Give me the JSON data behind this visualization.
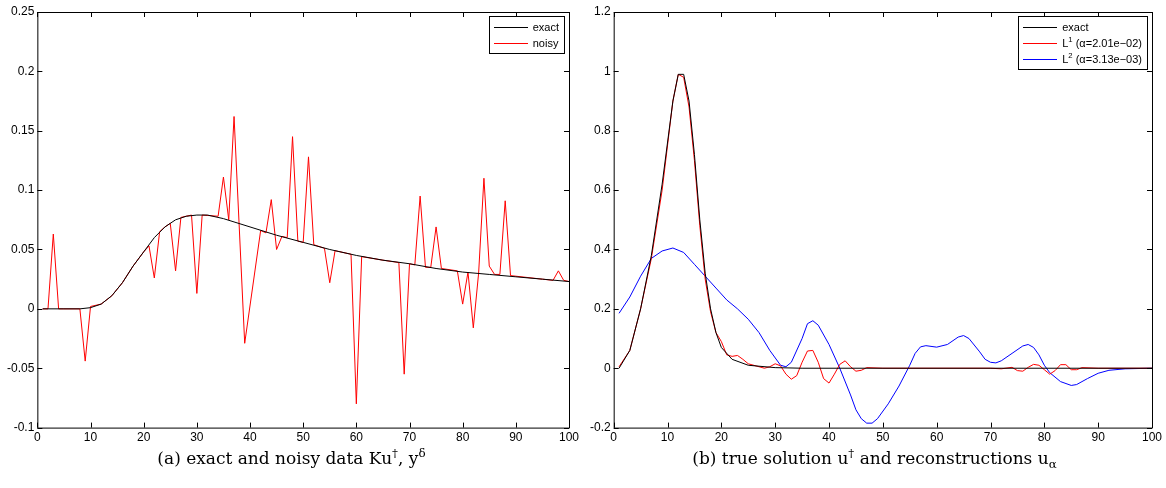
{
  "chart_data": [
    {
      "type": "line",
      "xlabel": "(a) exact and noisy data Ku$^{†}$, y$^{δ}$",
      "xlim": [
        0,
        100
      ],
      "xticks": [
        0,
        10,
        20,
        30,
        40,
        50,
        60,
        70,
        80,
        90,
        100
      ],
      "ylim": [
        -0.1,
        0.25
      ],
      "yticks": [
        -0.1,
        -0.05,
        0,
        0.05,
        0.1,
        0.15,
        0.2,
        0.25
      ],
      "legend": "top right",
      "series": [
        {
          "name": "exact",
          "color": "#000000",
          "x": [
            1,
            5,
            8,
            10,
            12,
            14,
            16,
            18,
            20,
            22,
            24,
            26,
            28,
            30,
            32,
            35,
            40,
            45,
            50,
            55,
            60,
            65,
            70,
            75,
            80,
            85,
            90,
            95,
            100
          ],
          "values": [
            0,
            0,
            0,
            0.001,
            0.004,
            0.011,
            0.022,
            0.036,
            0.048,
            0.06,
            0.069,
            0.075,
            0.078,
            0.079,
            0.079,
            0.076,
            0.069,
            0.062,
            0.056,
            0.05,
            0.045,
            0.041,
            0.038,
            0.034,
            0.031,
            0.029,
            0.027,
            0.025,
            0.023
          ]
        },
        {
          "name": "noisy",
          "color": "#ff0000",
          "x": [
            1,
            2,
            3,
            4,
            8,
            9,
            10,
            12,
            14,
            16,
            18,
            20,
            21,
            22,
            23,
            24,
            25,
            26,
            27,
            28,
            29,
            30,
            31,
            34,
            35,
            36,
            37,
            39,
            42,
            43,
            44,
            45,
            46,
            47,
            48,
            49,
            50,
            51,
            52,
            54,
            55,
            56,
            59,
            60,
            61,
            65,
            68,
            69,
            70,
            71,
            72,
            73,
            74,
            75,
            76,
            79,
            80,
            81,
            82,
            83,
            84,
            85,
            86,
            87,
            88,
            89,
            95,
            97,
            98,
            99,
            100
          ],
          "values": [
            0,
            0,
            0.063,
            0,
            0,
            -0.044,
            0.002,
            0.004,
            0.011,
            0.022,
            0.036,
            0.048,
            0.053,
            0.026,
            0.065,
            0.069,
            0.072,
            0.032,
            0.077,
            0.078,
            0.079,
            0.013,
            0.079,
            0.078,
            0.111,
            0.075,
            0.162,
            -0.029,
            0.066,
            0.064,
            0.092,
            0.05,
            0.061,
            0.06,
            0.145,
            0.057,
            0.056,
            0.128,
            0.054,
            0.051,
            0.022,
            0.049,
            0.046,
            -0.08,
            0.044,
            0.041,
            0.039,
            -0.055,
            0.038,
            0.037,
            0.095,
            0.035,
            0.035,
            0.069,
            0.034,
            0.032,
            0.004,
            0.031,
            -0.016,
            0.03,
            0.11,
            0.036,
            0.029,
            0.029,
            0.091,
            0.028,
            0.025,
            0.024,
            0.032,
            0.024,
            0.023
          ]
        }
      ]
    },
    {
      "type": "line",
      "xlabel": "(b) true solution u$^{†}$ and reconstructions u$_{α}$",
      "xlim": [
        0,
        100
      ],
      "xticks": [
        0,
        10,
        20,
        30,
        40,
        50,
        60,
        70,
        80,
        90,
        100
      ],
      "ylim": [
        -0.2,
        1.2
      ],
      "yticks": [
        -0.2,
        0,
        0.2,
        0.4,
        0.6,
        0.8,
        1,
        1.2
      ],
      "legend": "top right",
      "series": [
        {
          "name": "exact",
          "color": "#000000",
          "x": [
            1,
            3,
            5,
            7,
            9,
            11,
            12,
            13,
            14,
            15,
            16,
            17,
            18,
            19,
            20,
            22,
            25,
            30,
            35,
            100
          ],
          "values": [
            0,
            0.06,
            0.2,
            0.38,
            0.62,
            0.9,
            0.99,
            0.99,
            0.9,
            0.72,
            0.5,
            0.32,
            0.2,
            0.12,
            0.07,
            0.03,
            0.01,
            0.002,
            0,
            0
          ]
        },
        {
          "name": "L$^{1}$ (α=2.01e−02)",
          "color": "#ff0000",
          "x": [
            1,
            3,
            5,
            7,
            9,
            11,
            12,
            13,
            14,
            15,
            16,
            17,
            18,
            19,
            20,
            21,
            22,
            23,
            24,
            25,
            27,
            28,
            29,
            30,
            31,
            32,
            33,
            34,
            35,
            36,
            37,
            38,
            39,
            40,
            41,
            42,
            43,
            44,
            45,
            46,
            47,
            50,
            70,
            72,
            74,
            75,
            76,
            77,
            78,
            79,
            80,
            81,
            82,
            83,
            84,
            85,
            86,
            87,
            90,
            100
          ],
          "values": [
            0.005,
            0.06,
            0.2,
            0.37,
            0.6,
            0.9,
            0.99,
            0.98,
            0.88,
            0.7,
            0.48,
            0.3,
            0.19,
            0.12,
            0.09,
            0.045,
            0.04,
            0.043,
            0.03,
            0.015,
            0.005,
            0,
            0.005,
            0.015,
            0.008,
            -0.02,
            -0.037,
            -0.025,
            0.02,
            0.058,
            0.06,
            0.02,
            -0.035,
            -0.05,
            -0.02,
            0.013,
            0.025,
            0.005,
            -0.01,
            -0.007,
            0.002,
            0,
            0,
            -0.002,
            0.003,
            -0.008,
            -0.01,
            0.003,
            0.013,
            0.01,
            -0.005,
            -0.02,
            -0.008,
            0.012,
            0.012,
            -0.005,
            -0.005,
            0.002,
            0,
            0
          ]
        },
        {
          "name": "L$^{2}$ (α=3.13e−03)",
          "color": "#0000ff",
          "x": [
            1,
            3,
            5,
            7,
            9,
            11,
            13,
            15,
            17,
            19,
            21,
            23,
            25,
            27,
            29,
            31,
            32,
            33,
            35,
            36,
            37,
            38,
            40,
            42,
            44,
            45,
            46,
            47,
            48,
            49,
            51,
            53,
            55,
            56,
            57,
            58,
            60,
            62,
            64,
            65,
            66,
            68,
            69,
            70,
            71,
            72,
            74,
            76,
            77,
            78,
            79,
            80,
            81,
            83,
            85,
            86,
            88,
            90,
            92,
            95,
            100
          ],
          "values": [
            0.185,
            0.24,
            0.31,
            0.37,
            0.395,
            0.405,
            0.39,
            0.35,
            0.31,
            0.27,
            0.23,
            0.2,
            0.165,
            0.12,
            0.06,
            0.01,
            0.005,
            0.02,
            0.1,
            0.15,
            0.16,
            0.145,
            0.08,
            0,
            -0.09,
            -0.14,
            -0.17,
            -0.185,
            -0.185,
            -0.17,
            -0.12,
            -0.06,
            0.01,
            0.05,
            0.072,
            0.076,
            0.071,
            0.08,
            0.105,
            0.11,
            0.1,
            0.055,
            0.03,
            0.02,
            0.018,
            0.025,
            0.05,
            0.075,
            0.08,
            0.07,
            0.045,
            0.01,
            -0.015,
            -0.045,
            -0.058,
            -0.055,
            -0.035,
            -0.017,
            -0.007,
            -0.002,
            0
          ]
        }
      ]
    }
  ]
}
